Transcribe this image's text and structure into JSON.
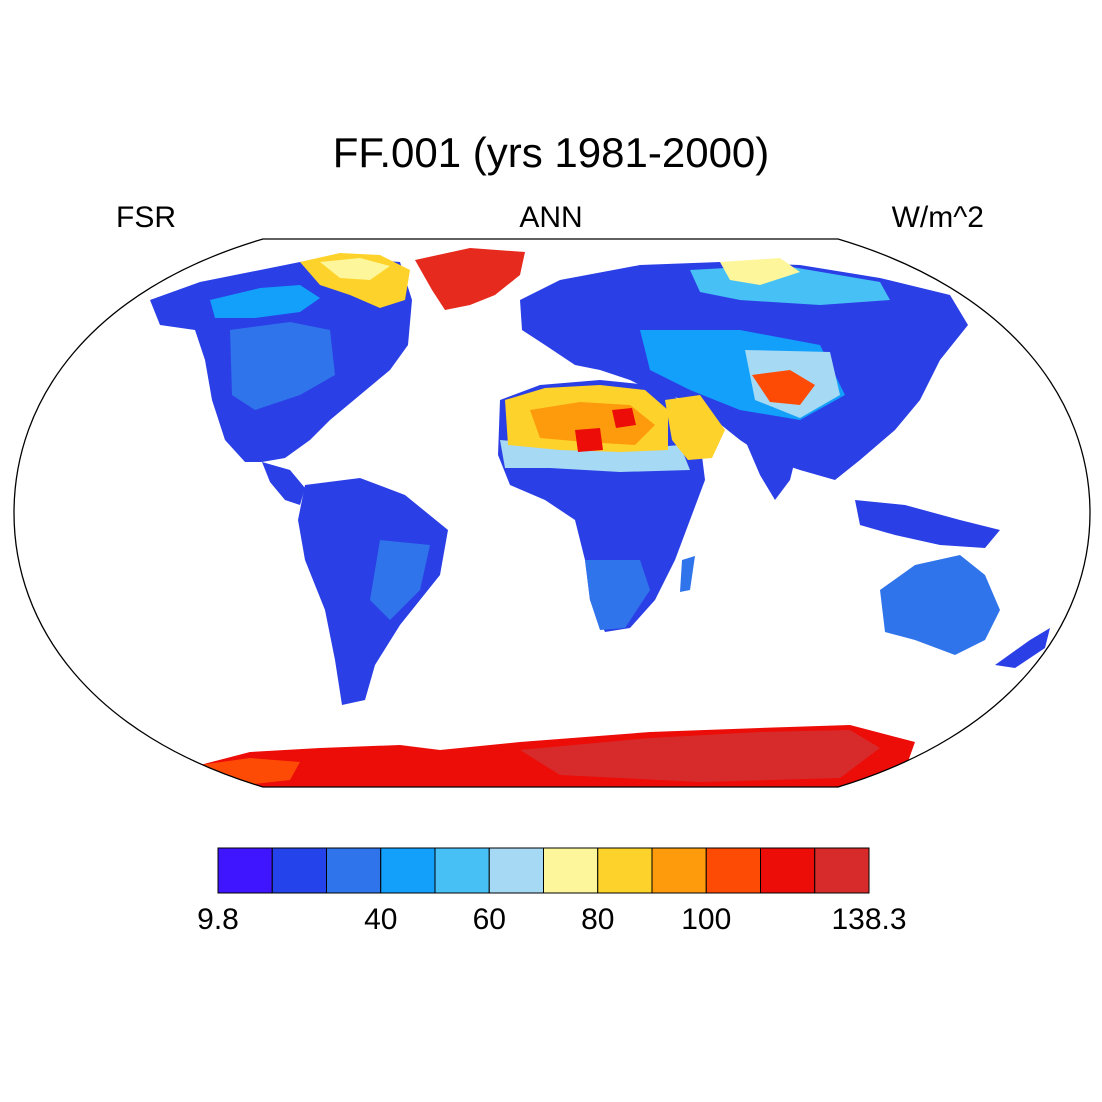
{
  "title": "FF.001 (yrs 1981-2000)",
  "left_label": "FSR",
  "center_label": "ANN",
  "right_label": "W/m^2",
  "colorbar": {
    "colors": [
      "#3f14ff",
      "#2443ea",
      "#2f74ea",
      "#12a0fb",
      "#47c0f6",
      "#a6d9f4",
      "#fdf69a",
      "#fdd22a",
      "#fd9b0d",
      "#fd4b05",
      "#ec0c08",
      "#d72b2b"
    ],
    "labels": [
      {
        "text": "9.8",
        "boundary": 0
      },
      {
        "text": "40",
        "boundary": 3
      },
      {
        "text": "60",
        "boundary": 5
      },
      {
        "text": "80",
        "boundary": 7
      },
      {
        "text": "100",
        "boundary": 9
      },
      {
        "text": "138.3",
        "boundary": 12
      }
    ]
  }
}
